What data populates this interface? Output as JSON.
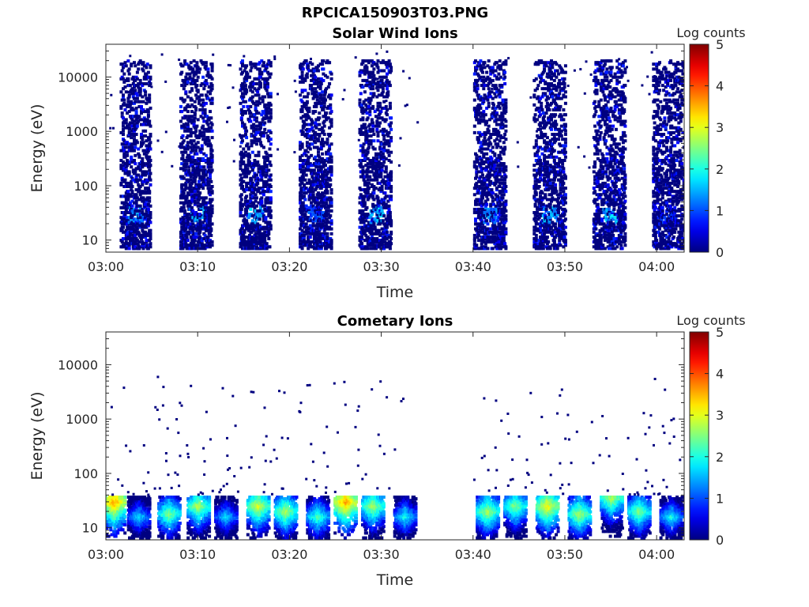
{
  "figure_title": "RPCICA150903T03.PNG",
  "colors": {
    "axis": "#262626",
    "colormap": "jet",
    "background": "#ffffff"
  },
  "chart_data": [
    {
      "type": "heatmap",
      "title": "Solar Wind Ions",
      "xlabel": "Time",
      "ylabel": "Energy (eV)",
      "yscale": "log",
      "ylim": [
        6,
        40000
      ],
      "xlim_minutes": [
        0,
        63
      ],
      "x_ticks": [
        "03:00",
        "03:10",
        "03:20",
        "03:30",
        "03:40",
        "03:50",
        "04:00"
      ],
      "y_ticks": [
        "10",
        "100",
        "1000",
        "10000"
      ],
      "colorbar": {
        "label": "Log counts",
        "range": [
          0,
          5
        ],
        "ticks": [
          "0",
          "1",
          "2",
          "3",
          "4",
          "5"
        ]
      },
      "grid": false,
      "bursts": [
        {
          "start_min": 1.5,
          "end_min": 4.8,
          "peak_log_counts": 1.5
        },
        {
          "start_min": 8.0,
          "end_min": 11.5,
          "peak_log_counts": 1.6
        },
        {
          "start_min": 14.5,
          "end_min": 17.8,
          "peak_log_counts": 1.8
        },
        {
          "start_min": 21.0,
          "end_min": 24.5,
          "peak_log_counts": 1.2
        },
        {
          "start_min": 27.5,
          "end_min": 31.0,
          "peak_log_counts": 1.8
        },
        {
          "start_min": 40.0,
          "end_min": 43.5,
          "peak_log_counts": 1.5
        },
        {
          "start_min": 46.5,
          "end_min": 50.0,
          "peak_log_counts": 1.8
        },
        {
          "start_min": 53.0,
          "end_min": 56.5,
          "peak_log_counts": 1.8
        },
        {
          "start_min": 59.5,
          "end_min": 62.8,
          "peak_log_counts": 1.0
        }
      ],
      "data_gap_minutes": [
        34,
        40
      ]
    },
    {
      "type": "heatmap",
      "title": "Cometary Ions",
      "xlabel": "Time",
      "ylabel": "Energy (eV)",
      "yscale": "log",
      "ylim": [
        6,
        40000
      ],
      "xlim_minutes": [
        0,
        63
      ],
      "x_ticks": [
        "03:00",
        "03:10",
        "03:20",
        "03:30",
        "03:40",
        "03:50",
        "04:00"
      ],
      "y_ticks": [
        "10",
        "100",
        "1000",
        "10000"
      ],
      "colorbar": {
        "label": "Log counts",
        "range": [
          0,
          5
        ],
        "ticks": [
          "0",
          "1",
          "2",
          "3",
          "4",
          "5"
        ]
      },
      "grid": false,
      "bands": [
        {
          "center_min": 0.8,
          "energy_eV": 30,
          "peak_log_counts": 3.8
        },
        {
          "center_min": 3.5,
          "energy_eV": 16,
          "peak_log_counts": 2.0
        },
        {
          "center_min": 6.8,
          "energy_eV": 18,
          "peak_log_counts": 2.8
        },
        {
          "center_min": 10.0,
          "energy_eV": 25,
          "peak_log_counts": 3.0
        },
        {
          "center_min": 13.0,
          "energy_eV": 16,
          "peak_log_counts": 2.0
        },
        {
          "center_min": 16.5,
          "energy_eV": 25,
          "peak_log_counts": 3.2
        },
        {
          "center_min": 19.5,
          "energy_eV": 20,
          "peak_log_counts": 3.0
        },
        {
          "center_min": 23.0,
          "energy_eV": 16,
          "peak_log_counts": 2.5
        },
        {
          "center_min": 26.0,
          "energy_eV": 30,
          "peak_log_counts": 3.8
        },
        {
          "center_min": 29.0,
          "energy_eV": 25,
          "peak_log_counts": 3.0
        },
        {
          "center_min": 32.5,
          "energy_eV": 16,
          "peak_log_counts": 2.2
        },
        {
          "center_min": 41.5,
          "energy_eV": 20,
          "peak_log_counts": 3.0
        },
        {
          "center_min": 44.5,
          "energy_eV": 25,
          "peak_log_counts": 2.8
        },
        {
          "center_min": 48.0,
          "energy_eV": 25,
          "peak_log_counts": 3.4
        },
        {
          "center_min": 51.5,
          "energy_eV": 18,
          "peak_log_counts": 3.0
        },
        {
          "center_min": 55.0,
          "energy_eV": 35,
          "peak_log_counts": 3.0
        },
        {
          "center_min": 58.0,
          "energy_eV": 20,
          "peak_log_counts": 2.8
        },
        {
          "center_min": 61.5,
          "energy_eV": 16,
          "peak_log_counts": 2.2
        }
      ],
      "data_gap_minutes": [
        34,
        40
      ]
    }
  ]
}
